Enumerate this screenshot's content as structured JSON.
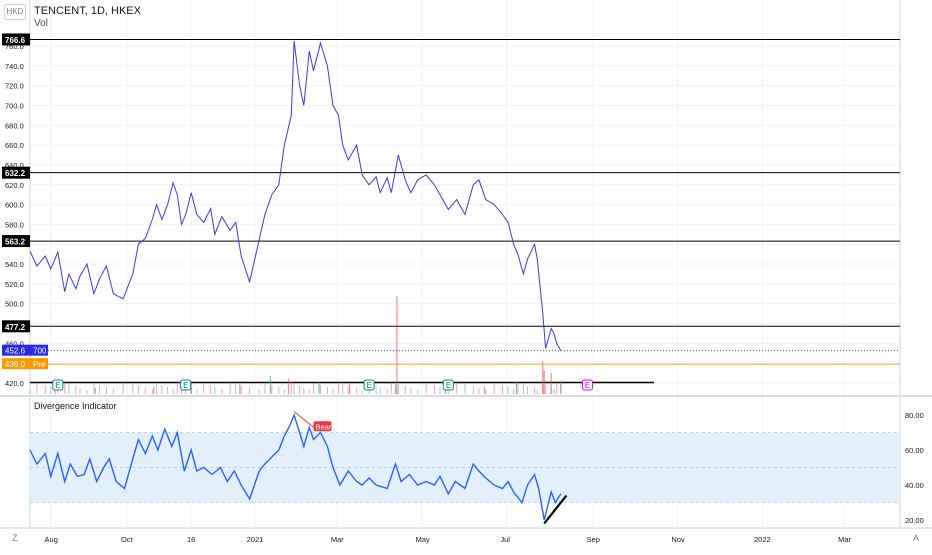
{
  "header": {
    "title": "TENCENT, 1D, HKEX",
    "volume_label": "Vol",
    "currency_button": "HKD"
  },
  "indicator": {
    "title": "Divergence Indicator",
    "bear_label": "Bear"
  },
  "footer": {
    "left_button": "Z",
    "right_button": "A"
  },
  "price_labels": {
    "current_price": "452.6",
    "current_volume": "700",
    "pre_price": "439.0",
    "pre_label": "Pre"
  },
  "earnings_marker": "E",
  "colors": {
    "price_line": "#3a3ae0",
    "indicator_line": "#2962ff",
    "band_fill": "#e3f0fc",
    "vol_up": "#26a69a",
    "vol_down": "#ef5350",
    "bear_label_bg": "#f23645",
    "current_price_bg": "#2a2ae6",
    "pre_bg": "#ff9800",
    "earnings": "#00897b",
    "earnings_future": "#d500f9"
  },
  "chart_data": [
    {
      "type": "line",
      "title": "TENCENT, 1D, HKEX",
      "xlabel": "",
      "ylabel": "",
      "ylim": [
        414,
        771
      ],
      "x_range": [
        "2020-07-23",
        "2022-04-10"
      ],
      "x_ticks": [
        {
          "date": "2020-08-07",
          "label": "Aug"
        },
        {
          "date": "2020-10-01",
          "label": "Oct"
        },
        {
          "date": "2020-11-16",
          "label": "16"
        },
        {
          "date": "2021-01-01",
          "label": "2021"
        },
        {
          "date": "2021-03-01",
          "label": "Mar"
        },
        {
          "date": "2021-05-01",
          "label": "May"
        },
        {
          "date": "2021-07-01",
          "label": "Jul"
        },
        {
          "date": "2021-09-01",
          "label": "Sep"
        },
        {
          "date": "2021-11-01",
          "label": "Nov"
        },
        {
          "date": "2022-01-01",
          "label": "2022"
        },
        {
          "date": "2022-03-01",
          "label": "Mar"
        }
      ],
      "y_ticks": [
        420,
        440,
        460,
        480,
        500,
        520,
        540,
        560,
        580,
        600,
        620,
        640,
        660,
        680,
        700,
        720,
        740,
        760
      ],
      "y_tick_labels": [
        "420.0",
        "440.0",
        "460.0",
        "480.0",
        "500.0",
        "520.0",
        "540.0",
        "560.0",
        "580.0",
        "600.0",
        "620.0",
        "640.0",
        "660.0",
        "680.0",
        "700.0",
        "720.0",
        "740.0",
        "760.0"
      ],
      "horizontal_levels": [
        766.6,
        632.2,
        563.2,
        477.2
      ],
      "level_labels": [
        "766.6",
        "632.2",
        "563.2",
        "477.2"
      ],
      "support_line": {
        "value": 420.5,
        "from": "2020-07-23",
        "to": "2021-10-15"
      },
      "series": [
        {
          "points": [
            [
              "2020-07-23",
              553
            ],
            [
              "2020-07-28",
              538
            ],
            [
              "2020-08-03",
              548
            ],
            [
              "2020-08-07",
              535
            ],
            [
              "2020-08-12",
              552
            ],
            [
              "2020-08-17",
              512
            ],
            [
              "2020-08-20",
              530
            ],
            [
              "2020-08-25",
              515
            ],
            [
              "2020-08-28",
              528
            ],
            [
              "2020-09-02",
              540
            ],
            [
              "2020-09-07",
              510
            ],
            [
              "2020-09-11",
              525
            ],
            [
              "2020-09-16",
              538
            ],
            [
              "2020-09-21",
              510
            ],
            [
              "2020-09-28",
              505
            ],
            [
              "2020-10-05",
              530
            ],
            [
              "2020-10-09",
              560
            ],
            [
              "2020-10-14",
              566
            ],
            [
              "2020-10-19",
              585
            ],
            [
              "2020-10-22",
              600
            ],
            [
              "2020-10-26",
              585
            ],
            [
              "2020-10-30",
              600
            ],
            [
              "2020-11-03",
              622
            ],
            [
              "2020-11-06",
              610
            ],
            [
              "2020-11-09",
              580
            ],
            [
              "2020-11-12",
              590
            ],
            [
              "2020-11-16",
              612
            ],
            [
              "2020-11-20",
              590
            ],
            [
              "2020-11-25",
              582
            ],
            [
              "2020-11-30",
              596
            ],
            [
              "2020-12-03",
              570
            ],
            [
              "2020-12-08",
              588
            ],
            [
              "2020-12-14",
              574
            ],
            [
              "2020-12-18",
              582
            ],
            [
              "2020-12-22",
              548
            ],
            [
              "2020-12-28",
              522
            ],
            [
              "2021-01-04",
              565
            ],
            [
              "2021-01-08",
              590
            ],
            [
              "2021-01-13",
              610
            ],
            [
              "2021-01-18",
              620
            ],
            [
              "2021-01-22",
              660
            ],
            [
              "2021-01-27",
              690
            ],
            [
              "2021-01-29",
              765
            ],
            [
              "2021-02-02",
              720
            ],
            [
              "2021-02-05",
              700
            ],
            [
              "2021-02-09",
              755
            ],
            [
              "2021-02-12",
              735
            ],
            [
              "2021-02-17",
              763
            ],
            [
              "2021-02-22",
              740
            ],
            [
              "2021-02-26",
              700
            ],
            [
              "2021-03-02",
              690
            ],
            [
              "2021-03-05",
              660
            ],
            [
              "2021-03-09",
              645
            ],
            [
              "2021-03-15",
              660
            ],
            [
              "2021-03-19",
              630
            ],
            [
              "2021-03-24",
              620
            ],
            [
              "2021-03-29",
              628
            ],
            [
              "2021-04-01",
              612
            ],
            [
              "2021-04-06",
              627
            ],
            [
              "2021-04-09",
              612
            ],
            [
              "2021-04-14",
              650
            ],
            [
              "2021-04-19",
              625
            ],
            [
              "2021-04-23",
              612
            ],
            [
              "2021-04-28",
              625
            ],
            [
              "2021-05-04",
              630
            ],
            [
              "2021-05-10",
              620
            ],
            [
              "2021-05-14",
              610
            ],
            [
              "2021-05-20",
              595
            ],
            [
              "2021-05-26",
              605
            ],
            [
              "2021-06-01",
              590
            ],
            [
              "2021-06-07",
              620
            ],
            [
              "2021-06-11",
              625
            ],
            [
              "2021-06-16",
              605
            ],
            [
              "2021-06-22",
              600
            ],
            [
              "2021-06-28",
              590
            ],
            [
              "2021-07-02",
              582
            ],
            [
              "2021-07-06",
              560
            ],
            [
              "2021-07-09",
              550
            ],
            [
              "2021-07-13",
              530
            ],
            [
              "2021-07-16",
              545
            ],
            [
              "2021-07-21",
              560
            ],
            [
              "2021-07-23",
              545
            ],
            [
              "2021-07-27",
              490
            ],
            [
              "2021-07-29",
              455
            ],
            [
              "2021-08-02",
              475
            ],
            [
              "2021-08-04",
              470
            ],
            [
              "2021-08-06",
              460
            ],
            [
              "2021-08-09",
              452.6
            ]
          ]
        }
      ]
    },
    {
      "type": "bar",
      "title": "Vol",
      "ylim": [
        0,
        200
      ],
      "series": [
        {
          "name": "Vol",
          "points": [
            [
              "2020-08-10",
              8
            ],
            [
              "2020-09-08",
              10
            ],
            [
              "2020-10-20",
              12
            ],
            [
              "2020-11-16",
              18
            ],
            [
              "2020-12-21",
              22
            ],
            [
              "2021-01-12",
              30
            ],
            [
              "2021-01-25",
              26
            ],
            [
              "2021-02-16",
              20
            ],
            [
              "2021-03-10",
              18
            ],
            [
              "2021-04-12",
              16
            ],
            [
              "2021-04-13",
              165
            ],
            [
              "2021-05-18",
              14
            ],
            [
              "2021-06-15",
              12
            ],
            [
              "2021-07-08",
              20
            ],
            [
              "2021-07-27",
              55
            ],
            [
              "2021-07-28",
              40
            ],
            [
              "2021-08-02",
              35
            ],
            [
              "2021-08-09",
              22
            ]
          ]
        }
      ]
    },
    {
      "type": "line",
      "title": "Divergence Indicator",
      "ylim": [
        16,
        88
      ],
      "y_ticks": [
        20,
        40,
        60,
        80
      ],
      "y_tick_labels": [
        "20.00",
        "40.00",
        "60.00",
        "80.00"
      ],
      "band": [
        30,
        70
      ],
      "band_midline": 50,
      "series": [
        {
          "points": [
            [
              "2020-07-23",
              60
            ],
            [
              "2020-07-28",
              52
            ],
            [
              "2020-08-03",
              58
            ],
            [
              "2020-08-07",
              45
            ],
            [
              "2020-08-12",
              58
            ],
            [
              "2020-08-17",
              42
            ],
            [
              "2020-08-21",
              52
            ],
            [
              "2020-08-26",
              45
            ],
            [
              "2020-08-31",
              46
            ],
            [
              "2020-09-04",
              55
            ],
            [
              "2020-09-09",
              42
            ],
            [
              "2020-09-14",
              50
            ],
            [
              "2020-09-18",
              55
            ],
            [
              "2020-09-23",
              42
            ],
            [
              "2020-09-29",
              38
            ],
            [
              "2020-10-05",
              55
            ],
            [
              "2020-10-09",
              66
            ],
            [
              "2020-10-14",
              58
            ],
            [
              "2020-10-19",
              68
            ],
            [
              "2020-10-23",
              60
            ],
            [
              "2020-10-28",
              72
            ],
            [
              "2020-11-02",
              62
            ],
            [
              "2020-11-06",
              70
            ],
            [
              "2020-11-11",
              48
            ],
            [
              "2020-11-16",
              60
            ],
            [
              "2020-11-20",
              48
            ],
            [
              "2020-11-25",
              50
            ],
            [
              "2020-12-01",
              46
            ],
            [
              "2020-12-07",
              50
            ],
            [
              "2020-12-12",
              42
            ],
            [
              "2020-12-17",
              48
            ],
            [
              "2020-12-22",
              40
            ],
            [
              "2020-12-28",
              32
            ],
            [
              "2021-01-04",
              48
            ],
            [
              "2021-01-08",
              52
            ],
            [
              "2021-01-13",
              56
            ],
            [
              "2021-01-18",
              60
            ],
            [
              "2021-01-22",
              68
            ],
            [
              "2021-01-26",
              74
            ],
            [
              "2021-01-29",
              80
            ],
            [
              "2021-02-02",
              70
            ],
            [
              "2021-02-05",
              62
            ],
            [
              "2021-02-09",
              73
            ],
            [
              "2021-02-12",
              66
            ],
            [
              "2021-02-17",
              70
            ],
            [
              "2021-02-22",
              62
            ],
            [
              "2021-02-26",
              50
            ],
            [
              "2021-03-03",
              40
            ],
            [
              "2021-03-09",
              48
            ],
            [
              "2021-03-15",
              42
            ],
            [
              "2021-03-19",
              40
            ],
            [
              "2021-03-24",
              44
            ],
            [
              "2021-03-29",
              40
            ],
            [
              "2021-04-06",
              38
            ],
            [
              "2021-04-12",
              52
            ],
            [
              "2021-04-16",
              42
            ],
            [
              "2021-04-22",
              46
            ],
            [
              "2021-04-28",
              40
            ],
            [
              "2021-05-04",
              42
            ],
            [
              "2021-05-10",
              40
            ],
            [
              "2021-05-14",
              45
            ],
            [
              "2021-05-20",
              35
            ],
            [
              "2021-05-25",
              42
            ],
            [
              "2021-06-01",
              38
            ],
            [
              "2021-06-07",
              52
            ],
            [
              "2021-06-11",
              48
            ],
            [
              "2021-06-16",
              44
            ],
            [
              "2021-06-22",
              40
            ],
            [
              "2021-06-28",
              38
            ],
            [
              "2021-07-02",
              42
            ],
            [
              "2021-07-06",
              36
            ],
            [
              "2021-07-12",
              30
            ],
            [
              "2021-07-16",
              40
            ],
            [
              "2021-07-21",
              46
            ],
            [
              "2021-07-24",
              38
            ],
            [
              "2021-07-28",
              20
            ],
            [
              "2021-08-02",
              36
            ],
            [
              "2021-08-05",
              30
            ],
            [
              "2021-08-09",
              35
            ]
          ]
        }
      ],
      "annotations": [
        {
          "type": "line",
          "from": [
            "2021-01-29",
            82
          ],
          "to": [
            "2021-02-12",
            73
          ],
          "color": "#f23645",
          "label": "Bear"
        },
        {
          "type": "line",
          "from": [
            "2021-07-28",
            18
          ],
          "to": [
            "2021-08-13",
            34
          ],
          "color": "#000000"
        }
      ]
    }
  ]
}
